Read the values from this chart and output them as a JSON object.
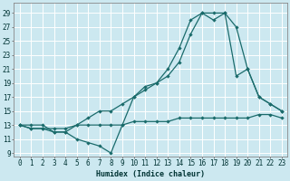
{
  "xlabel": "Humidex (Indice chaleur)",
  "background_color": "#cce8f0",
  "grid_color": "#ffffff",
  "line_color": "#1a6b6b",
  "xlim": [
    -0.5,
    23.5
  ],
  "ylim": [
    8.5,
    30.5
  ],
  "xticks": [
    0,
    1,
    2,
    3,
    4,
    5,
    6,
    7,
    8,
    9,
    10,
    11,
    12,
    13,
    14,
    15,
    16,
    17,
    18,
    19,
    20,
    21,
    22,
    23
  ],
  "yticks": [
    9,
    11,
    13,
    15,
    17,
    19,
    21,
    23,
    25,
    27,
    29
  ],
  "line1_x": [
    0,
    1,
    2,
    3,
    4,
    5,
    6,
    7,
    8,
    9,
    10,
    11,
    12,
    13,
    14,
    15,
    16,
    17,
    18,
    19,
    20,
    21,
    22,
    23
  ],
  "line1_y": [
    13,
    12.5,
    12.5,
    12.5,
    12.5,
    13,
    13,
    13,
    13,
    13,
    13.5,
    13.5,
    13.5,
    13.5,
    14,
    14,
    14,
    14,
    14,
    14,
    14,
    14.5,
    14.5,
    14
  ],
  "line2_x": [
    0,
    1,
    2,
    3,
    4,
    5,
    6,
    7,
    8,
    9,
    10,
    11,
    12,
    13,
    14,
    15,
    16,
    17,
    18,
    19,
    20,
    21,
    22,
    23
  ],
  "line2_y": [
    13,
    12.5,
    12.5,
    12,
    12,
    11,
    10.5,
    10,
    9,
    13,
    17,
    18.5,
    19,
    21,
    24,
    28,
    29,
    29,
    29,
    20,
    21,
    17,
    16,
    15
  ],
  "line3_x": [
    0,
    1,
    2,
    3,
    4,
    5,
    6,
    7,
    8,
    9,
    10,
    11,
    12,
    13,
    14,
    15,
    16,
    17,
    18,
    19,
    20,
    21,
    22,
    23
  ],
  "line3_y": [
    13,
    13,
    13,
    12,
    12,
    13,
    14,
    15,
    15,
    16,
    17,
    18,
    19,
    20,
    22,
    26,
    29,
    28,
    29,
    27,
    21,
    17,
    16,
    15
  ]
}
